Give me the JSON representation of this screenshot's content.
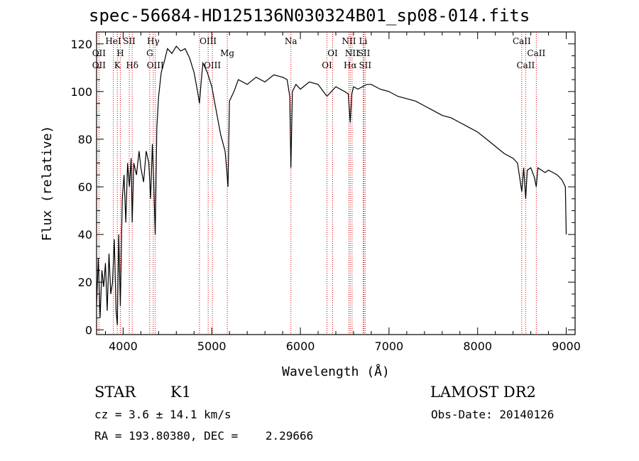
{
  "chart_data": {
    "type": "line",
    "title": "spec-56684-HD125136N030324B01_sp08-014.fits",
    "xlabel": "Wavelength (Å)",
    "ylabel": "Flux (relative)",
    "xlim": [
      3700,
      9100
    ],
    "ylim": [
      -2,
      125
    ],
    "x_ticks": [
      4000,
      5000,
      6000,
      7000,
      8000,
      9000
    ],
    "y_ticks": [
      0,
      20,
      40,
      60,
      80,
      100,
      120
    ],
    "grid": false,
    "series": [
      {
        "x": [
          3700,
          3720,
          3740,
          3760,
          3780,
          3800,
          3820,
          3840,
          3860,
          3880,
          3900,
          3920,
          3934,
          3950,
          3968,
          3990,
          4010,
          4030,
          4050,
          4070,
          4090,
          4102,
          4120,
          4150,
          4180,
          4200,
          4230,
          4260,
          4290,
          4310,
          4330,
          4345,
          4362,
          4380,
          4400,
          4430,
          4460,
          4500,
          4550,
          4600,
          4650,
          4700,
          4750,
          4800,
          4840,
          4861,
          4880,
          4900,
          4950,
          5000,
          5050,
          5100,
          5150,
          5167,
          5183,
          5200,
          5250,
          5300,
          5400,
          5500,
          5600,
          5700,
          5800,
          5850,
          5880,
          5893,
          5910,
          5950,
          6000,
          6100,
          6200,
          6300,
          6400,
          6500,
          6540,
          6563,
          6580,
          6600,
          6650,
          6700,
          6750,
          6800,
          6900,
          7000,
          7100,
          7200,
          7300,
          7400,
          7500,
          7600,
          7700,
          7800,
          7900,
          8000,
          8100,
          8200,
          8300,
          8400,
          8450,
          8498,
          8520,
          8542,
          8560,
          8600,
          8640,
          8662,
          8680,
          8720,
          8760,
          8800,
          8850,
          8900,
          8950,
          8990,
          9000
        ],
        "y": [
          10,
          30,
          5,
          25,
          18,
          28,
          8,
          32,
          15,
          20,
          38,
          8,
          2,
          40,
          10,
          55,
          65,
          45,
          70,
          60,
          72,
          45,
          70,
          65,
          75,
          68,
          62,
          75,
          70,
          55,
          78,
          62,
          40,
          85,
          98,
          108,
          112,
          118,
          116,
          119,
          117,
          118,
          114,
          108,
          100,
          95,
          104,
          112,
          108,
          102,
          92,
          82,
          75,
          68,
          60,
          96,
          100,
          105,
          103,
          106,
          104,
          107,
          106,
          105,
          98,
          68,
          100,
          103,
          101,
          104,
          103,
          98,
          102,
          100,
          99,
          87,
          99,
          102,
          101,
          102,
          103,
          103,
          101,
          100,
          98,
          97,
          96,
          94,
          92,
          90,
          89,
          87,
          85,
          83,
          80,
          77,
          74,
          72,
          70,
          58,
          68,
          55,
          67,
          68,
          64,
          60,
          68,
          67,
          66,
          67,
          66,
          65,
          63,
          60,
          40
        ]
      }
    ],
    "lines": {
      "positions": [
        3727,
        3889,
        3934,
        3968,
        4069,
        4102,
        4300,
        4340,
        4363,
        4861,
        4959,
        5007,
        5175,
        5893,
        6300,
        6364,
        6548,
        6563,
        6583,
        6708,
        6717,
        6731,
        8498,
        8542,
        8662
      ]
    },
    "annotations": [
      {
        "text": "OII",
        "x": 3727,
        "row": 2
      },
      {
        "text": "OII",
        "x": 3727,
        "row": 3
      },
      {
        "text": "HeI",
        "x": 3889,
        "row": 1
      },
      {
        "text": "SII",
        "x": 4069,
        "row": 1
      },
      {
        "text": "H",
        "x": 3968,
        "row": 2
      },
      {
        "text": "K",
        "x": 3934,
        "row": 3
      },
      {
        "text": "Hδ",
        "x": 4102,
        "row": 3
      },
      {
        "text": "Hγ",
        "x": 4340,
        "row": 1
      },
      {
        "text": "G",
        "x": 4300,
        "row": 2
      },
      {
        "text": "OIII",
        "x": 4363,
        "row": 3
      },
      {
        "text": "OIII",
        "x": 4959,
        "row": 1
      },
      {
        "text": "OIII",
        "x": 5007,
        "row": 3
      },
      {
        "text": "Mg",
        "x": 5175,
        "row": 2
      },
      {
        "text": "Na",
        "x": 5893,
        "row": 1
      },
      {
        "text": "OI",
        "x": 6364,
        "row": 2
      },
      {
        "text": "OI",
        "x": 6300,
        "row": 3
      },
      {
        "text": "NII",
        "x": 6548,
        "row": 1
      },
      {
        "text": "NII",
        "x": 6583,
        "row": 2
      },
      {
        "text": "Hα",
        "x": 6563,
        "row": 3
      },
      {
        "text": "Li",
        "x": 6708,
        "row": 1
      },
      {
        "text": "SII",
        "x": 6717,
        "row": 2
      },
      {
        "text": "SII",
        "x": 6731,
        "row": 3
      },
      {
        "text": "CaII",
        "x": 8498,
        "row": 1
      },
      {
        "text": "CaII",
        "x": 8662,
        "row": 2
      },
      {
        "text": "CaII",
        "x": 8542,
        "row": 3
      }
    ]
  },
  "info": {
    "class_label": "STAR",
    "subclass_label": "K1",
    "survey_label": "LAMOST DR2",
    "cz_text": "cz = 3.6 ± 14.1 km/s",
    "obs_date_text": "Obs-Date: 20140126",
    "radec_text": "RA = 193.80380, DEC =    2.29666"
  },
  "colors": {
    "spectrum": "#000000",
    "line_markers": "#cc0000",
    "axes": "#000000",
    "background": "#ffffff"
  }
}
